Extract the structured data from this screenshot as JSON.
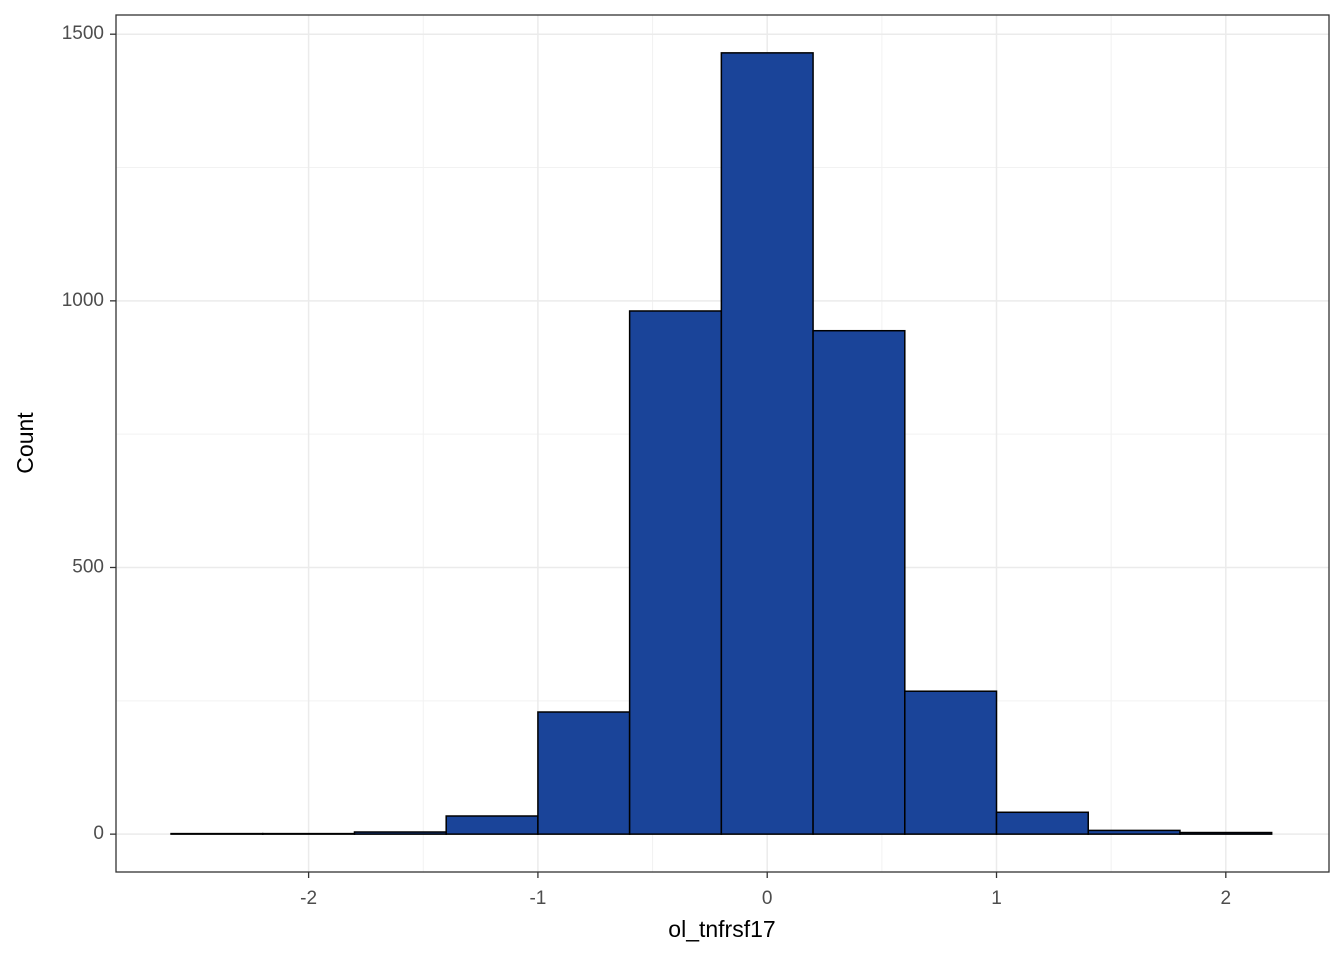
{
  "chart_data": {
    "type": "histogram",
    "x_label": "ol_tnfrsf17",
    "y_label": "Count",
    "bins": [
      -2.6,
      -2.2,
      -1.8,
      -1.4,
      -1.0,
      -0.6,
      -0.2,
      0.2,
      0.6,
      1.0,
      1.4,
      1.8,
      2.2
    ],
    "values": [
      1,
      1,
      4,
      34,
      229,
      981,
      1465,
      944,
      268,
      41,
      7,
      3
    ],
    "color": "#1a4499",
    "xlim": [
      -2.84,
      2.45
    ],
    "ylim": [
      -71,
      1536
    ],
    "xticks": [
      -2,
      -1,
      0,
      1,
      2
    ],
    "yticks": [
      0,
      500,
      1000,
      1500
    ],
    "grid": true
  }
}
